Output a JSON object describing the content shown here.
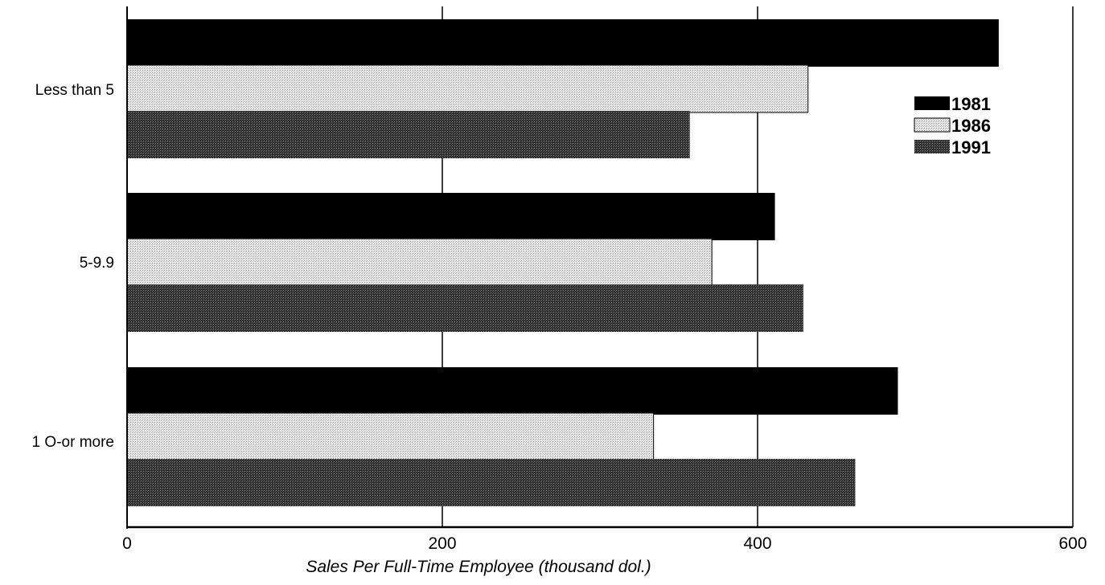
{
  "chart_data": {
    "type": "bar",
    "orientation": "horizontal",
    "categories": [
      "Less than 5",
      "5-9.9",
      "1 O-or more"
    ],
    "series": [
      {
        "name": "1981",
        "values": [
          553,
          411,
          489
        ],
        "color": "#000000",
        "pattern": "solid"
      },
      {
        "name": "1986",
        "values": [
          432,
          371,
          334
        ],
        "color": "#d8d8d8",
        "pattern": "light-stipple"
      },
      {
        "name": "1991",
        "values": [
          357,
          429,
          462
        ],
        "color": "#3a3a3a",
        "pattern": "dark-stipple"
      }
    ],
    "xlabel": "Sales Per Full-Time Employee (thousand dol.)",
    "ylabel": "",
    "xlim": [
      0,
      600
    ],
    "xticks": [
      "0",
      "200",
      "400",
      "600"
    ],
    "grid": "vertical",
    "legend_position": "right"
  }
}
